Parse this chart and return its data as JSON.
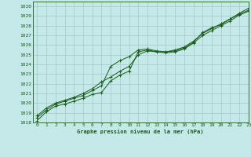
{
  "title": "Graphe pression niveau de la mer (hPa)",
  "bg_color": "#c5e8e8",
  "grid_color": "#a0c8c8",
  "line_color": "#1a5c1a",
  "xlim": [
    -0.5,
    23
  ],
  "ylim": [
    1018,
    1030.5
  ],
  "xticks": [
    0,
    1,
    2,
    3,
    4,
    5,
    6,
    7,
    8,
    9,
    10,
    11,
    12,
    13,
    14,
    15,
    16,
    17,
    18,
    19,
    20,
    21,
    22,
    23
  ],
  "yticks": [
    1018,
    1019,
    1020,
    1021,
    1022,
    1023,
    1024,
    1025,
    1026,
    1027,
    1028,
    1029,
    1030
  ],
  "series": [
    [
      1018.2,
      1019.1,
      1019.7,
      1019.9,
      1020.2,
      1020.5,
      1020.9,
      1021.1,
      1022.3,
      1022.9,
      1023.3,
      1025.3,
      1025.5,
      1025.3,
      1025.3,
      1025.4,
      1025.7,
      1026.3,
      1027.3,
      1027.8,
      1028.1,
      1028.7,
      1029.3,
      1029.8
    ],
    [
      1018.5,
      1019.3,
      1019.9,
      1020.2,
      1020.5,
      1020.8,
      1021.3,
      1021.8,
      1023.8,
      1024.4,
      1024.8,
      1025.5,
      1025.6,
      1025.4,
      1025.3,
      1025.5,
      1025.8,
      1026.4,
      1027.2,
      1027.7,
      1028.2,
      1028.7,
      1029.2,
      1029.6
    ],
    [
      1018.7,
      1019.5,
      1020.0,
      1020.3,
      1020.6,
      1021.0,
      1021.5,
      1022.2,
      1022.7,
      1023.3,
      1023.8,
      1025.0,
      1025.4,
      1025.3,
      1025.2,
      1025.3,
      1025.6,
      1026.2,
      1027.0,
      1027.5,
      1028.0,
      1028.5,
      1029.1,
      1029.5
    ]
  ]
}
